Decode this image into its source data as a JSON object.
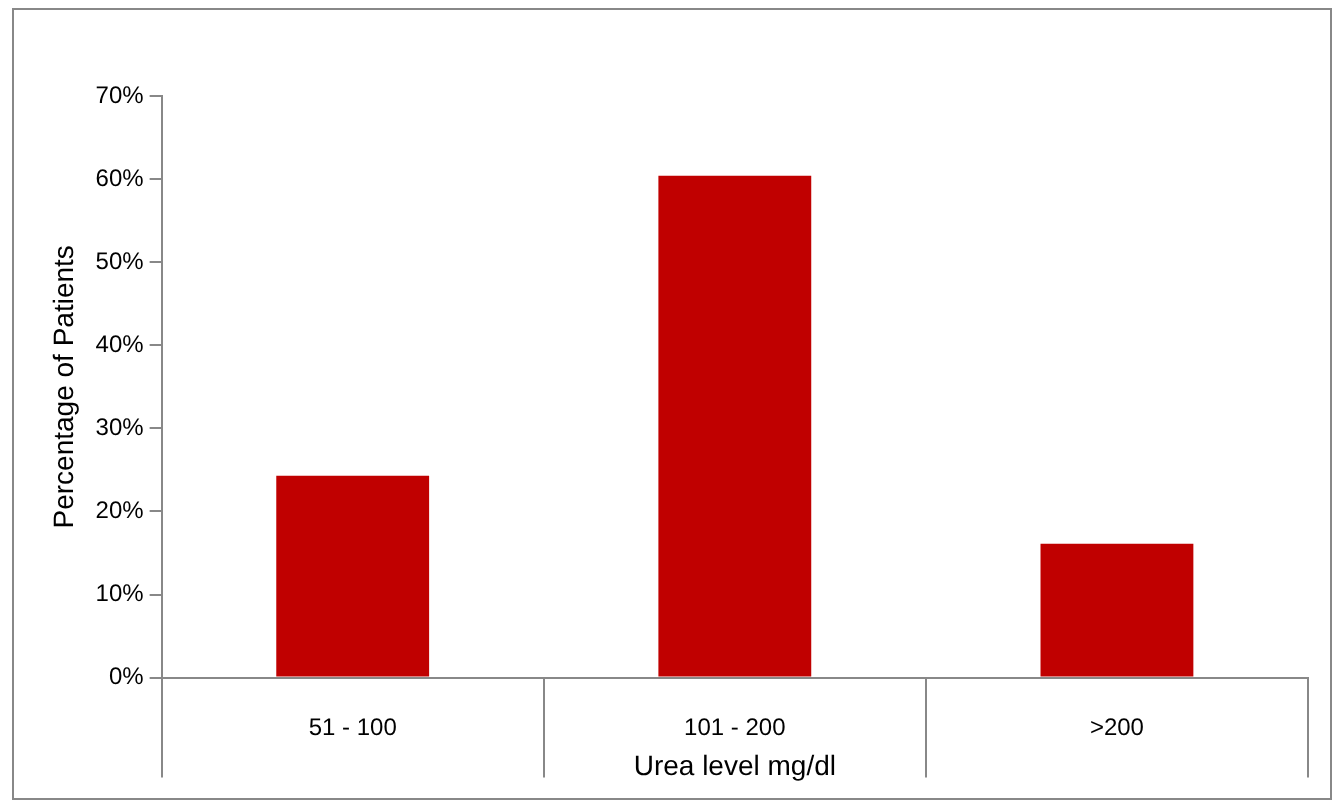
{
  "chart_data": {
    "type": "bar",
    "xlabel": "Urea level mg/dl",
    "ylabel": "Percentage of Patients",
    "categories": [
      "51 - 100",
      "101 - 200",
      ">200"
    ],
    "values": [
      24.3,
      60.4,
      16.1
    ],
    "color": "#c00000",
    "ylim": [
      0,
      70
    ],
    "yticks": [
      {
        "value": 0,
        "label": "0%"
      },
      {
        "value": 10,
        "label": "10%"
      },
      {
        "value": 20,
        "label": "20%"
      },
      {
        "value": 30,
        "label": "30%"
      },
      {
        "value": 40,
        "label": "40%"
      },
      {
        "value": 50,
        "label": "50%"
      },
      {
        "value": 60,
        "label": "60%"
      },
      {
        "value": 70,
        "label": "70%"
      }
    ],
    "grid": false,
    "legend": false
  }
}
